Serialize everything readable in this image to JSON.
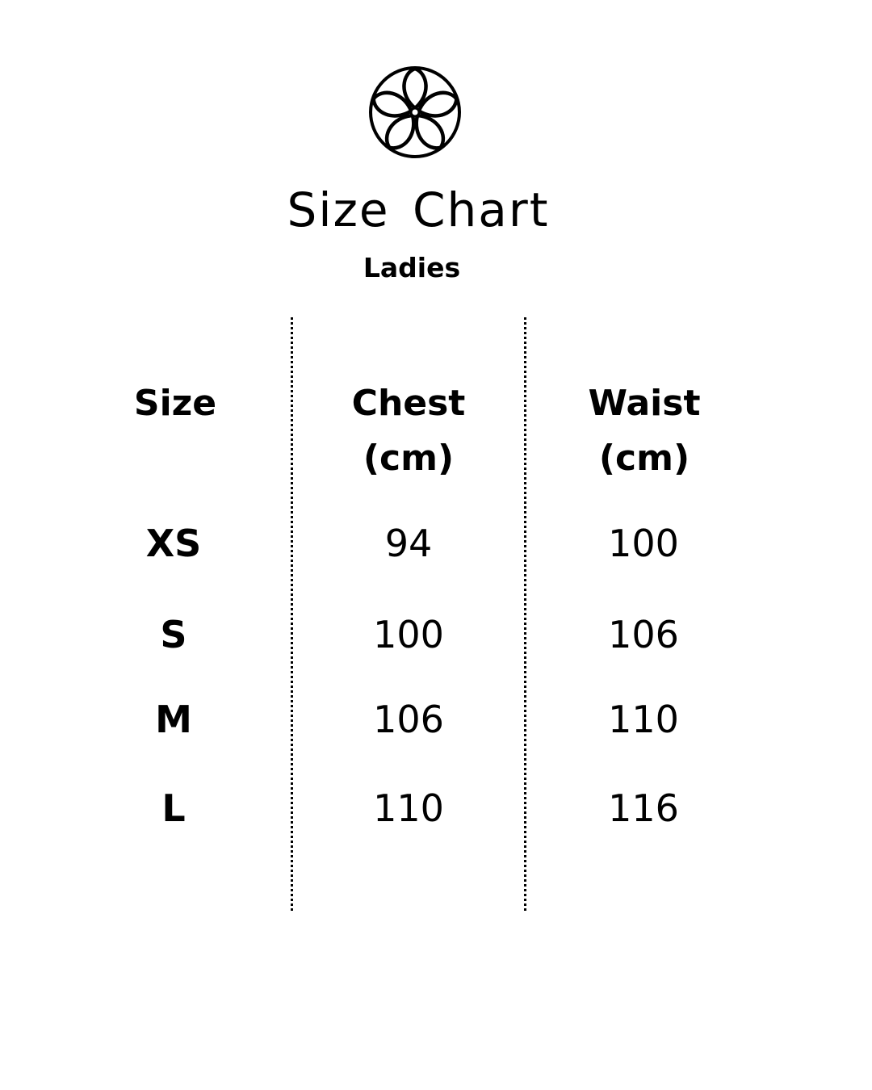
{
  "header": {
    "logo_icon": "flower-in-circle-logo",
    "title": "Size Chart",
    "subtitle": "Ladies"
  },
  "table": {
    "columns": [
      "Size",
      "Chest\n(cm)",
      "Waist\n(cm)"
    ],
    "column_lines": [
      [
        "Size"
      ],
      [
        "Chest",
        "(cm)"
      ],
      [
        "Waist",
        "(cm)"
      ]
    ],
    "rows": [
      {
        "size": "XS",
        "chest": "94",
        "waist": "100"
      },
      {
        "size": "S",
        "chest": "100",
        "waist": "106"
      },
      {
        "size": "M",
        "chest": "106",
        "waist": "110"
      },
      {
        "size": "L",
        "chest": "110",
        "waist": "116"
      }
    ]
  }
}
